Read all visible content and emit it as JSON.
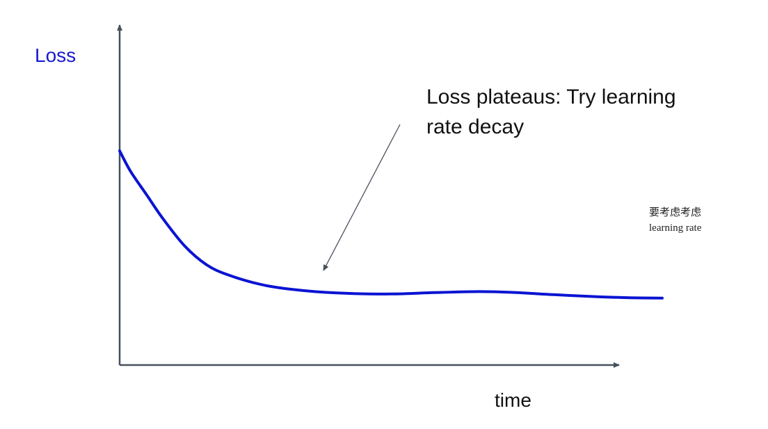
{
  "chart_data": {
    "type": "line",
    "title": "",
    "xlabel": "time",
    "ylabel": "Loss",
    "ylim": [
      0,
      1
    ],
    "xlim": [
      0,
      1
    ],
    "grid": false,
    "series": [
      {
        "x": [
          0,
          0.02,
          0.05,
          0.08,
          0.12,
          0.16,
          0.2,
          0.26,
          0.32,
          0.4,
          0.5,
          0.58,
          0.66,
          0.72,
          0.8,
          0.88,
          0.94,
          1.0
        ],
        "y": [
          0.63,
          0.57,
          0.5,
          0.43,
          0.35,
          0.295,
          0.265,
          0.237,
          0.222,
          0.212,
          0.209,
          0.213,
          0.216,
          0.214,
          0.207,
          0.201,
          0.198,
          0.197
        ]
      }
    ],
    "annotations": [
      {
        "lines": [
          "Loss plateaus: Try learning",
          "rate decay"
        ],
        "points_to_x": 0.38
      }
    ],
    "side_note": [
      "要考虑考虑",
      "learning rate"
    ]
  },
  "colors": {
    "axis": "#46505a",
    "line": "#0a14d2",
    "ylabel": "#1919d2",
    "text": "#111111",
    "arrow": "#46505a"
  }
}
